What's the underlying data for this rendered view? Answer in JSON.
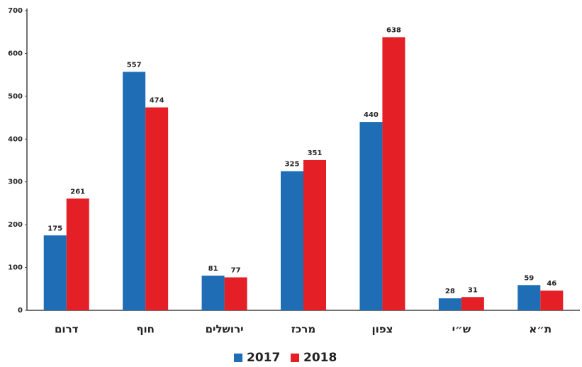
{
  "chart_data": {
    "type": "bar",
    "categories": [
      "דרום",
      "חוף",
      "ירושלים",
      "מרכז",
      "צפון",
      "ש״י",
      "ת״א"
    ],
    "series": [
      {
        "name": "2017",
        "color": "#1f6db4",
        "values": [
          175,
          557,
          81,
          325,
          440,
          28,
          59
        ]
      },
      {
        "name": "2018",
        "color": "#e41f26",
        "values": [
          261,
          474,
          77,
          351,
          638,
          31,
          46
        ]
      }
    ],
    "ylim": [
      0,
      700
    ],
    "yticks": [
      0,
      100,
      200,
      300,
      400,
      500,
      600,
      700
    ],
    "grid": false,
    "legend": "bottom"
  }
}
